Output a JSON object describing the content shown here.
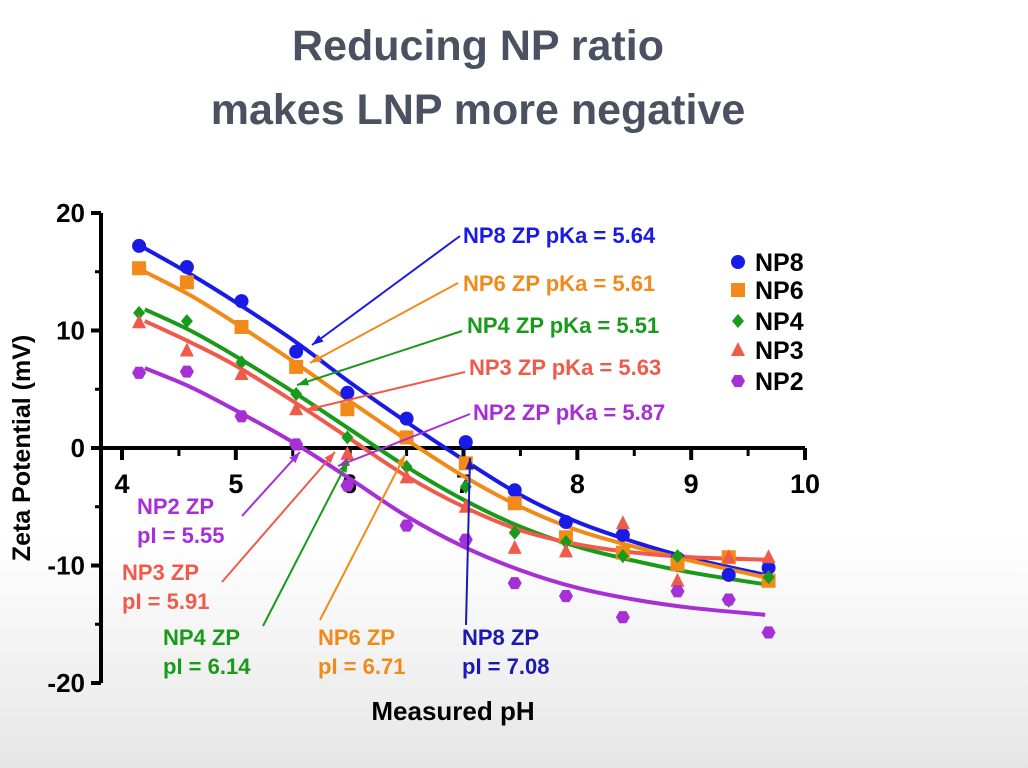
{
  "chart_data": {
    "type": "scatter",
    "title": [
      "Reducing NP ratio",
      "makes LNP more negative"
    ],
    "xlabel": "Measured pH",
    "ylabel": "Zeta Potential  (mV)",
    "xlim": [
      4,
      10
    ],
    "ylim": [
      -20,
      20
    ],
    "xticks": [
      "4",
      "5",
      "6",
      "7",
      "8",
      "9",
      "10"
    ],
    "yticks": [
      "20",
      "10",
      "0",
      "-10",
      "-20"
    ],
    "grid": false,
    "legend_placement": "right",
    "x": [
      4.15,
      4.57,
      5.05,
      5.53,
      5.98,
      6.5,
      7.02,
      7.45,
      7.9,
      8.4,
      8.88,
      9.33,
      9.68
    ],
    "fit_x": [
      4.2,
      4.6,
      5.0,
      5.5,
      6.0,
      6.5,
      7.0,
      7.5,
      8.0,
      8.5,
      9.0,
      9.65
    ],
    "series": [
      {
        "name": "NP8",
        "color": "#1a1ae6",
        "marker": "circle",
        "values": [
          17.2,
          15.4,
          12.5,
          8.2,
          4.7,
          2.5,
          0.5,
          -3.6,
          -6.3,
          -7.4,
          -9.4,
          -10.8,
          -10.2
        ],
        "fit": [
          17.0,
          14.8,
          12.4,
          9.2,
          5.6,
          2.2,
          -1.0,
          -4.0,
          -6.3,
          -8.0,
          -9.4,
          -10.8
        ]
      },
      {
        "name": "NP6",
        "color": "#f28a1a",
        "marker": "square",
        "values": [
          15.3,
          14.1,
          10.3,
          6.9,
          3.3,
          0.9,
          -1.3,
          -4.7,
          -7.6,
          -8.9,
          -9.9,
          -9.3,
          -11.3
        ],
        "fit": [
          15.0,
          13.0,
          10.6,
          7.4,
          4.0,
          0.7,
          -2.4,
          -5.0,
          -7.0,
          -8.4,
          -9.6,
          -11.0
        ]
      },
      {
        "name": "NP4",
        "color": "#1a9a1a",
        "marker": "diamond",
        "values": [
          11.5,
          10.8,
          7.3,
          4.6,
          0.9,
          -1.6,
          -3.3,
          -7.2,
          -8.0,
          -9.2,
          -9.2,
          -13.0,
          -11.0
        ],
        "fit": [
          11.8,
          10.0,
          7.8,
          4.8,
          1.6,
          -1.6,
          -4.4,
          -6.7,
          -8.4,
          -9.6,
          -10.6,
          -11.6
        ]
      },
      {
        "name": "NP3",
        "color": "#ef5a4a",
        "marker": "triangle",
        "values": [
          10.7,
          8.3,
          6.3,
          3.3,
          -0.5,
          -2.5,
          -5.0,
          -8.5,
          -8.8,
          -6.4,
          -11.3,
          -9.3,
          -9.3
        ],
        "fit": [
          10.8,
          9.0,
          7.0,
          4.0,
          0.8,
          -2.4,
          -5.0,
          -7.0,
          -8.2,
          -8.9,
          -9.3,
          -9.5
        ]
      },
      {
        "name": "NP2",
        "color": "#a62fd6",
        "marker": "hexagon",
        "values": [
          6.4,
          6.5,
          2.7,
          0.3,
          -3.2,
          -6.6,
          -7.8,
          -11.5,
          -12.6,
          -14.4,
          -12.2,
          -12.9,
          -15.7
        ],
        "fit": [
          6.8,
          5.2,
          3.2,
          0.5,
          -2.6,
          -5.8,
          -8.4,
          -10.4,
          -11.9,
          -12.9,
          -13.6,
          -14.2
        ]
      }
    ],
    "annotations": {
      "pka": [
        {
          "series": "NP8",
          "text": "NP8 ZP pKa = 5.64",
          "color": "#1a1ae6"
        },
        {
          "series": "NP6",
          "text": "NP6 ZP pKa = 5.61",
          "color": "#f28a1a"
        },
        {
          "series": "NP4",
          "text": "NP4 ZP pKa = 5.51",
          "color": "#1a9a1a"
        },
        {
          "series": "NP3",
          "text": "NP3 ZP pKa = 5.63",
          "color": "#ef5a4a"
        },
        {
          "series": "NP2",
          "text": "NP2 ZP pKa = 5.87",
          "color": "#a62fd6"
        }
      ],
      "pi": [
        {
          "series": "NP2",
          "line1": "NP2 ZP",
          "line2": "pI = 5.55",
          "color": "#a62fd6"
        },
        {
          "series": "NP3",
          "line1": "NP3 ZP",
          "line2": "pI = 5.91",
          "color": "#ef5a4a"
        },
        {
          "series": "NP4",
          "line1": "NP4 ZP",
          "line2": "pI = 6.14",
          "color": "#1a9a1a"
        },
        {
          "series": "NP6",
          "line1": "NP6 ZP",
          "line2": "pI = 6.71",
          "color": "#f28a1a"
        },
        {
          "series": "NP8",
          "line1": "NP8 ZP",
          "line2": "pI = 7.08",
          "color": "#1a1ab0"
        }
      ]
    }
  }
}
